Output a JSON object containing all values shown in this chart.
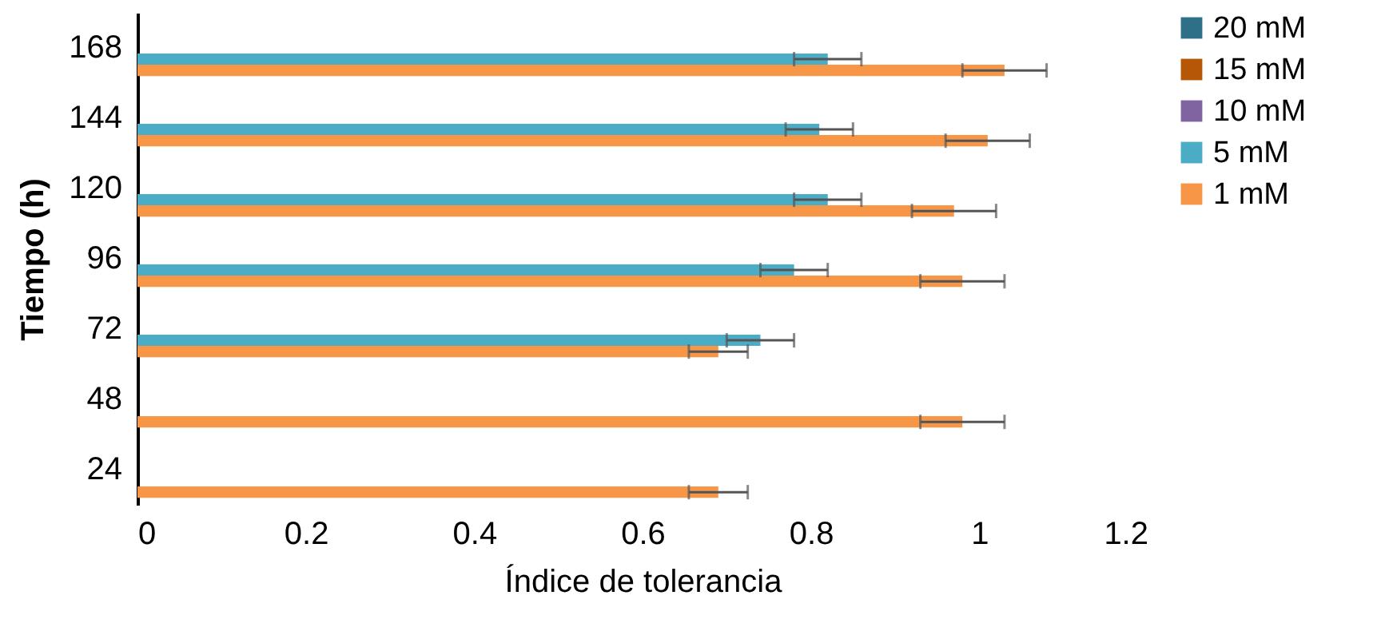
{
  "chart_data": {
    "type": "bar",
    "orientation": "horizontal",
    "xlabel": "Índice de tolerancia",
    "ylabel": "Tiempo (h)",
    "categories": [
      "168",
      "144",
      "120",
      "96",
      "72",
      "48",
      "24"
    ],
    "series": [
      {
        "name": "20 mM",
        "color": "#2e7087",
        "values": [
          null,
          null,
          null,
          null,
          null,
          null,
          null
        ]
      },
      {
        "name": "15 mM",
        "color": "#b65708",
        "values": [
          null,
          null,
          null,
          null,
          null,
          null,
          null
        ]
      },
      {
        "name": "10 mM",
        "color": "#8064a2",
        "values": [
          null,
          null,
          null,
          null,
          null,
          null,
          null
        ]
      },
      {
        "name": "5 mM",
        "color": "#4bacc6",
        "values": [
          0.82,
          0.81,
          0.82,
          0.78,
          0.74,
          null,
          null
        ],
        "errors": [
          0.04,
          0.04,
          0.04,
          0.04,
          0.04,
          null,
          null
        ]
      },
      {
        "name": "1 mM",
        "color": "#f79646",
        "values": [
          1.03,
          1.01,
          0.97,
          0.98,
          0.69,
          0.98,
          0.69
        ],
        "errors": [
          0.05,
          0.05,
          0.05,
          0.05,
          0.035,
          0.05,
          0.035
        ]
      }
    ],
    "xlim": [
      0,
      1.2
    ],
    "xticks": [
      0,
      0.2,
      0.4,
      0.6,
      0.8,
      1,
      1.2
    ],
    "grid": false,
    "legend": "right"
  }
}
